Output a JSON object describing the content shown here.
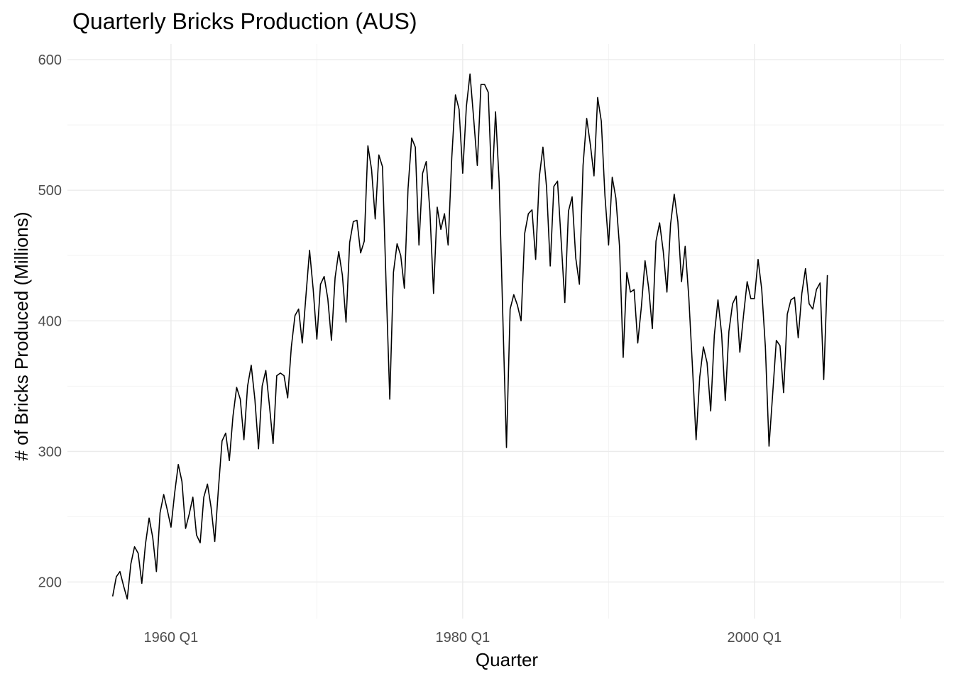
{
  "chart_data": {
    "type": "line",
    "title": "Quarterly Bricks Production (AUS)",
    "xlabel": "Quarter",
    "ylabel": "# of Bricks Produced (Millions)",
    "x_tick_labels": [
      "1960 Q1",
      "1980 Q1",
      "2000 Q1"
    ],
    "y_tick_labels": [
      "200",
      "300",
      "400",
      "500",
      "600"
    ],
    "grid": true,
    "legend": "none",
    "x_start": "1956 Q1",
    "xlim": [
      1952.9,
      2013.0
    ],
    "ylim": [
      172,
      612
    ],
    "line_color": "#000000",
    "series": [
      {
        "values": [
          189,
          204,
          208,
          197,
          187,
          214,
          227,
          222,
          199,
          229,
          249,
          234,
          208,
          253,
          267,
          255,
          242,
          268,
          290,
          277,
          241,
          252,
          265,
          236,
          230,
          265,
          275,
          257,
          231,
          271,
          308,
          314,
          293,
          327,
          349,
          340,
          309,
          350,
          366,
          340,
          302,
          350,
          362,
          335,
          306,
          358,
          360,
          358,
          341,
          380,
          404,
          409,
          383,
          419,
          454,
          424,
          386,
          428,
          434,
          417,
          385,
          433,
          453,
          435,
          399,
          460,
          476,
          477,
          452,
          461,
          534,
          516,
          478,
          527,
          518,
          427,
          340,
          437,
          459,
          450,
          425,
          501,
          540,
          533,
          458,
          513,
          522,
          484,
          421,
          487,
          470,
          482,
          458,
          525,
          573,
          562,
          513,
          564,
          589,
          555,
          519,
          581,
          581,
          575,
          501,
          560,
          506,
          403,
          303,
          409,
          420,
          412,
          400,
          467,
          482,
          485,
          447,
          510,
          533,
          502,
          442,
          503,
          507,
          461,
          414,
          484,
          495,
          448,
          428,
          519,
          555,
          535,
          511,
          571,
          553,
          496,
          458,
          510,
          494,
          457,
          372,
          437,
          422,
          424,
          383,
          411,
          446,
          425,
          394,
          461,
          475,
          453,
          422,
          474,
          497,
          476,
          430,
          457,
          418,
          365,
          309,
          357,
          380,
          368,
          331,
          389,
          416,
          390,
          339,
          392,
          413,
          419,
          376,
          404,
          430,
          417,
          417,
          447,
          424,
          380,
          304,
          344,
          385,
          381,
          345,
          405,
          416,
          418,
          387,
          421,
          440,
          413,
          409,
          424,
          429,
          355,
          435
        ]
      }
    ]
  }
}
